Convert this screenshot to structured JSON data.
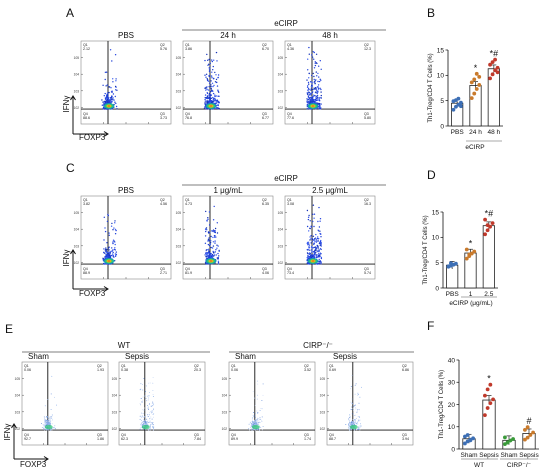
{
  "panels": {
    "A": {
      "letter": "A",
      "group_label": "eCIRP",
      "plots": [
        {
          "title": "PBS",
          "q1": "Q1\n2.12",
          "q2": "Q2\n5.76",
          "q3": "Q3\n3.73",
          "q4": "Q4\n88.6"
        },
        {
          "title": "24 h",
          "q1": "Q1\n3.86",
          "q2": "Q2\n6.70",
          "q3": "Q3\n6.77",
          "q4": "Q4\n76.8"
        },
        {
          "title": "48 h",
          "q1": "Q1\n4.36",
          "q2": "Q2\n12.3",
          "q3": "Q3\n5.80",
          "q4": "Q4\n77.6"
        }
      ]
    },
    "C": {
      "letter": "C",
      "group_label": "eCIRP",
      "plots": [
        {
          "title": "PBS",
          "q1": "Q1\n3.82",
          "q2": "Q2\n4.56",
          "q3": "Q3\n2.71",
          "q4": "Q4\n88.9"
        },
        {
          "title": "1 μg/mL",
          "q1": "Q1\n4.73",
          "q2": "Q2\n6.35",
          "q3": "Q3\n4.06",
          "q4": "Q4\n81.9"
        },
        {
          "title": "2.5 μg/mL",
          "q1": "Q1\n3.08",
          "q2": "Q2\n16.3",
          "q3": "Q3\n5.74",
          "q4": "Q4\n73.4"
        }
      ]
    },
    "E": {
      "letter": "E",
      "wt_label": "WT",
      "ko_label": "CIRP⁻/⁻",
      "plots": [
        {
          "title": "Sham",
          "q1": "Q1\n0.06",
          "q2": "Q2\n1.93",
          "q3": "Q3\n1.86",
          "q4": "Q4\n92.7"
        },
        {
          "title": "Sepsis",
          "q1": "Q1\n0.38",
          "q2": "Q2\n20.3",
          "q3": "Q3\n7.84",
          "q4": "Q4\n62.3"
        },
        {
          "title": "Sham",
          "q1": "Q1\n0.06",
          "q2": "Q2\n3.52",
          "q3": "Q3\n1.74",
          "q4": "Q4\n89.9"
        },
        {
          "title": "Sepsis",
          "q1": "Q1\n0.69",
          "q2": "Q2\n6.86",
          "q3": "Q3\n3.94",
          "q4": "Q4\n88.7"
        }
      ]
    },
    "axes": {
      "y": "IFNγ",
      "x": "FOXP3"
    },
    "B": {
      "letter": "B"
    },
    "D": {
      "letter": "D"
    },
    "F": {
      "letter": "F"
    }
  },
  "chart_data": [
    {
      "type": "bar",
      "panel": "B",
      "ylabel": "Th1-Treg/CD4 T Cells (%)",
      "categories": [
        "PBS",
        "24 h",
        "48 h"
      ],
      "group_label": "eCIRP",
      "values": [
        4.5,
        8.0,
        11.3
      ],
      "ylim": [
        0,
        15
      ],
      "yticks": [
        0,
        5,
        10,
        15
      ],
      "significance": [
        "",
        "*",
        "*#"
      ],
      "colors": [
        "#3d6fb5",
        "#c97a2c",
        "#c0392b"
      ],
      "points": [
        [
          3.2,
          3.8,
          4.2,
          4.6,
          4.9,
          5.1,
          5.4,
          3.9
        ],
        [
          5.5,
          6.4,
          7.3,
          8.1,
          8.6,
          9.2,
          10.3,
          9.7
        ],
        [
          9.4,
          10.2,
          11.0,
          11.5,
          12.1,
          12.6,
          13.1,
          10.6
        ]
      ]
    },
    {
      "type": "bar",
      "panel": "D",
      "ylabel": "Th1-Treg/CD4 T Cells (%)",
      "categories": [
        "PBS",
        "1",
        "2.5"
      ],
      "group_label": "eCIRP (μg/mL)",
      "values": [
        4.5,
        6.9,
        12.3
      ],
      "ylim": [
        0,
        15
      ],
      "yticks": [
        0,
        5,
        10,
        15
      ],
      "significance": [
        "",
        "*",
        "*#"
      ],
      "colors": [
        "#3d6fb5",
        "#c97a2c",
        "#c0392b"
      ],
      "points": [
        [
          4.2,
          4.4,
          4.6,
          4.8,
          4.3,
          4.9
        ],
        [
          5.8,
          6.3,
          6.8,
          7.2,
          7.6,
          6.6
        ],
        [
          10.6,
          11.4,
          12.1,
          12.8,
          13.5,
          12.4
        ]
      ]
    },
    {
      "type": "bar",
      "panel": "F",
      "ylabel": "Th1-Treg/CD4 T Cells (%)",
      "categories": [
        "Sham",
        "Sepsis",
        "Sham",
        "Sepsis"
      ],
      "group_labels": [
        "WT",
        "CIRP⁻/⁻"
      ],
      "values": [
        4.6,
        22.0,
        3.9,
        7.0
      ],
      "ylim": [
        0,
        40
      ],
      "yticks": [
        0,
        10,
        20,
        30,
        40
      ],
      "significance": [
        "",
        "*",
        "",
        "#"
      ],
      "colors": [
        "#3d6fb5",
        "#c0392b",
        "#3a9a3a",
        "#c97a2c"
      ],
      "points": [
        [
          2.5,
          3.4,
          4.2,
          4.8,
          5.6,
          6.3,
          3.9
        ],
        [
          15.2,
          18.4,
          20.6,
          22.3,
          24.0,
          26.8,
          28.9
        ],
        [
          2.2,
          3.0,
          3.8,
          4.5,
          5.2,
          2.9
        ],
        [
          4.2,
          5.1,
          6.3,
          7.4,
          8.6,
          9.8
        ]
      ]
    }
  ]
}
